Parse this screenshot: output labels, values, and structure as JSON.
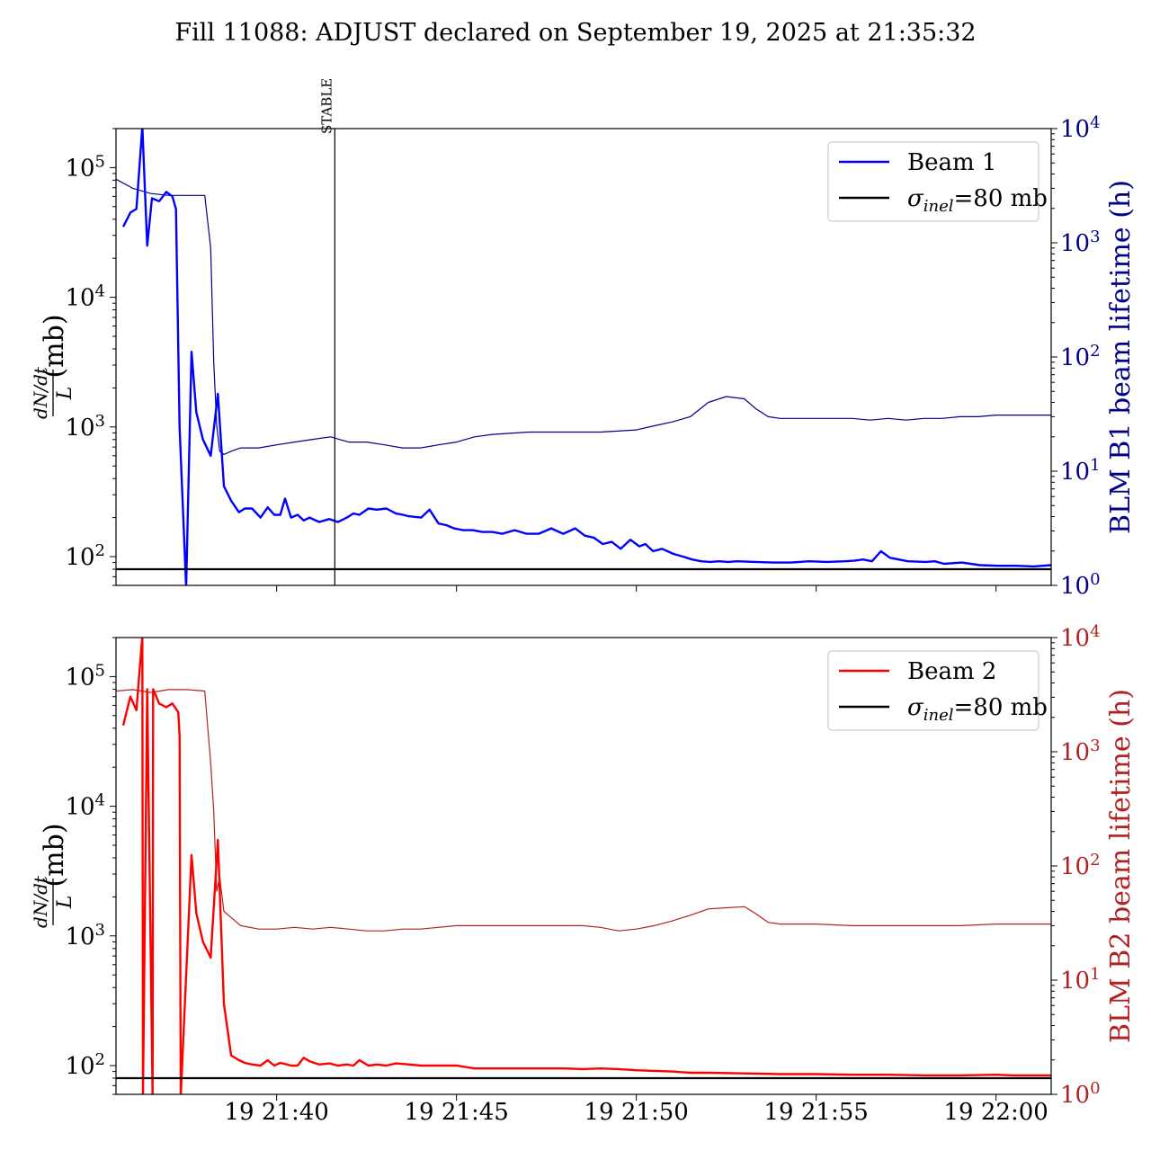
{
  "title": "Fill 11088: ADJUST declared on September 19, 2025 at 21:35:32",
  "annotation": "STABLE",
  "x_ticks": [
    "19 21:40",
    "19 21:45",
    "19 21:50",
    "19 21:55",
    "19 22:00"
  ],
  "chart_data": [
    {
      "type": "line",
      "panel": "top",
      "xlabel": "",
      "ylabel": "dN/dt / L (mb)",
      "y2label": "BLM B1 beam lifetime (h)",
      "xlim": [
        "21:35:32",
        "22:01:32"
      ],
      "ylim": [
        60,
        200000
      ],
      "y2lim": [
        1,
        10000
      ],
      "yscale": "log",
      "y2scale": "log",
      "grid": false,
      "legend": "top-right",
      "left_ticks": [
        "10^2",
        "10^3",
        "10^4",
        "10^5"
      ],
      "right_ticks": [
        "10^0",
        "10^1",
        "10^2",
        "10^3",
        "10^4"
      ],
      "vline": {
        "x": "21:41:37",
        "label": "STABLE"
      },
      "hline": {
        "y": 80,
        "label": "σinel=80 mb"
      },
      "series": [
        {
          "name": "Beam 1",
          "axis": "left",
          "color": "#0000ff",
          "x": [
            "21:35:44",
            "21:35:56",
            "21:36:06",
            "21:36:16",
            "21:36:24",
            "21:36:32",
            "21:36:44",
            "21:36:56",
            "21:37:06",
            "21:37:12",
            "21:37:18",
            "21:37:29",
            "21:37:38",
            "21:37:46",
            "21:37:57",
            "21:38:10",
            "21:38:22",
            "21:38:32",
            "21:38:44",
            "21:38:57",
            "21:39:07",
            "21:39:19",
            "21:39:33",
            "21:39:45",
            "21:39:56",
            "21:40:06",
            "21:40:14",
            "21:40:24",
            "21:40:35",
            "21:40:45",
            "21:40:55",
            "21:41:11",
            "21:41:28",
            "21:41:42",
            "21:41:57",
            "21:42:08",
            "21:42:18",
            "21:42:33",
            "21:42:47",
            "21:43:03",
            "21:43:19",
            "21:43:31",
            "21:43:40",
            "21:44:01",
            "21:44:15",
            "21:44:30",
            "21:44:43",
            "21:44:56",
            "21:45:11",
            "21:45:27",
            "21:45:43",
            "21:46:00",
            "21:46:16",
            "21:46:37",
            "21:46:57",
            "21:47:17",
            "21:47:38",
            "21:47:58",
            "21:48:18",
            "21:48:34",
            "21:48:49",
            "21:49:04",
            "21:49:19",
            "21:49:34",
            "21:49:50",
            "21:50:05",
            "21:50:15",
            "21:50:28",
            "21:50:43",
            "21:51:02",
            "21:51:18",
            "21:51:33",
            "21:51:48",
            "21:52:03",
            "21:52:18",
            "21:52:33",
            "21:52:48",
            "21:53:18",
            "21:53:48",
            "21:54:18",
            "21:54:48",
            "21:55:18",
            "21:55:48",
            "21:56:03",
            "21:56:18",
            "21:56:33",
            "21:56:48",
            "21:57:03",
            "21:57:33",
            "21:58:03",
            "21:58:18",
            "21:58:33",
            "21:59:03",
            "21:59:33",
            "22:00:03",
            "22:00:33",
            "22:01:03",
            "22:01:32"
          ],
          "values": [
            35000,
            45000,
            48000,
            210000,
            25000,
            58000,
            55000,
            65000,
            60000,
            48000,
            1000,
            20,
            3800,
            1300,
            800,
            600,
            1800,
            350,
            270,
            220,
            235,
            235,
            200,
            240,
            210,
            210,
            280,
            200,
            210,
            190,
            200,
            185,
            195,
            185,
            200,
            215,
            210,
            235,
            230,
            235,
            215,
            210,
            205,
            200,
            230,
            180,
            175,
            165,
            160,
            160,
            155,
            155,
            150,
            160,
            150,
            150,
            165,
            150,
            165,
            145,
            140,
            125,
            130,
            115,
            135,
            120,
            125,
            110,
            115,
            105,
            100,
            95,
            92,
            91,
            92,
            91,
            92,
            91,
            90,
            90,
            92,
            91,
            92,
            93,
            95,
            92,
            110,
            98,
            92,
            91,
            92,
            88,
            90,
            86,
            85,
            85,
            84,
            86
          ]
        },
        {
          "name": "BLM B1 beam lifetime",
          "axis": "right",
          "color": "#00008b",
          "x": [
            "21:35:32",
            "21:36:00",
            "21:36:30",
            "21:37:00",
            "21:37:30",
            "21:38:00",
            "21:38:10",
            "21:38:15",
            "21:38:20",
            "21:38:25",
            "21:38:32",
            "21:38:45",
            "21:39:00",
            "21:39:30",
            "21:40:00",
            "21:40:30",
            "21:41:00",
            "21:41:30",
            "21:42:00",
            "21:42:30",
            "21:43:00",
            "21:43:30",
            "21:44:00",
            "21:44:30",
            "21:45:00",
            "21:45:30",
            "21:46:00",
            "21:47:00",
            "21:48:00",
            "21:49:00",
            "21:50:00",
            "21:50:30",
            "21:51:00",
            "21:51:30",
            "21:52:00",
            "21:52:30",
            "21:53:00",
            "21:53:20",
            "21:53:40",
            "21:54:00",
            "21:54:30",
            "21:55:00",
            "21:55:30",
            "21:56:00",
            "21:56:30",
            "21:57:00",
            "21:57:30",
            "21:58:00",
            "21:58:30",
            "21:59:00",
            "21:59:30",
            "22:00:00",
            "22:00:30",
            "22:01:00",
            "22:01:32"
          ],
          "values": [
            3600,
            3000,
            2700,
            2600,
            2600,
            2600,
            900,
            90,
            25,
            15,
            14,
            15,
            16,
            16,
            17,
            18,
            19,
            20,
            18,
            18,
            17,
            16,
            16,
            17,
            18,
            20,
            21,
            22,
            22,
            22,
            23,
            25,
            27,
            30,
            40,
            45,
            43,
            35,
            30,
            29,
            29,
            29,
            29,
            29,
            28,
            29,
            28,
            29,
            29,
            30,
            30,
            31,
            31,
            31,
            31
          ]
        }
      ]
    },
    {
      "type": "line",
      "panel": "bottom",
      "xlabel": "",
      "ylabel": "dN/dt / L (mb)",
      "y2label": "BLM B2 beam lifetime (h)",
      "xlim": [
        "21:35:32",
        "22:01:32"
      ],
      "ylim": [
        60,
        200000
      ],
      "y2lim": [
        1,
        10000
      ],
      "yscale": "log",
      "y2scale": "log",
      "grid": false,
      "legend": "top-right",
      "left_ticks": [
        "10^2",
        "10^3",
        "10^4",
        "10^5"
      ],
      "right_ticks": [
        "10^0",
        "10^1",
        "10^2",
        "10^3",
        "10^4"
      ],
      "hline": {
        "y": 80,
        "label": "σinel=80 mb"
      },
      "series": [
        {
          "name": "Beam 2",
          "axis": "left",
          "color": "#ff0000",
          "x": [
            "21:35:44",
            "21:35:56",
            "21:36:06",
            "21:36:16",
            "21:36:17",
            "21:36:24",
            "21:36:33",
            "21:36:34",
            "21:36:44",
            "21:36:56",
            "21:37:06",
            "21:37:16",
            "21:37:18",
            "21:37:20",
            "21:37:38",
            "21:37:46",
            "21:37:57",
            "21:38:10",
            "21:38:22",
            "21:38:32",
            "21:38:44",
            "21:38:57",
            "21:39:07",
            "21:39:19",
            "21:39:33",
            "21:39:45",
            "21:39:56",
            "21:40:06",
            "21:40:14",
            "21:40:24",
            "21:40:35",
            "21:40:45",
            "21:40:55",
            "21:41:11",
            "21:41:28",
            "21:41:42",
            "21:41:57",
            "21:42:08",
            "21:42:18",
            "21:42:33",
            "21:42:47",
            "21:43:03",
            "21:43:19",
            "21:43:31",
            "21:44:01",
            "21:44:30",
            "21:45:00",
            "21:45:30",
            "21:46:00",
            "21:47:00",
            "21:48:00",
            "21:48:30",
            "21:49:00",
            "21:49:30",
            "21:50:00",
            "21:50:30",
            "21:51:00",
            "21:51:30",
            "21:52:00",
            "21:53:00",
            "21:54:00",
            "21:55:00",
            "21:56:00",
            "21:57:00",
            "21:58:00",
            "21:59:00",
            "22:00:00",
            "22:00:30",
            "22:01:00",
            "22:01:32"
          ],
          "values": [
            42000,
            70000,
            55000,
            210000,
            20,
            80000,
            20,
            80000,
            62000,
            58000,
            62000,
            53000,
            35000,
            20,
            4200,
            1500,
            900,
            680,
            5500,
            300,
            120,
            110,
            105,
            102,
            100,
            110,
            100,
            105,
            103,
            100,
            100,
            115,
            108,
            102,
            104,
            100,
            102,
            100,
            110,
            100,
            102,
            100,
            104,
            103,
            100,
            100,
            100,
            95,
            95,
            95,
            95,
            94,
            95,
            94,
            92,
            91,
            90,
            88,
            88,
            87,
            86,
            86,
            85,
            85,
            84,
            84,
            85,
            84,
            84,
            84
          ]
        },
        {
          "name": "BLM B2 beam lifetime",
          "axis": "right",
          "color": "#b22222",
          "x": [
            "21:35:32",
            "21:36:00",
            "21:36:30",
            "21:37:00",
            "21:37:30",
            "21:38:00",
            "21:38:10",
            "21:38:15",
            "21:38:20",
            "21:38:25",
            "21:38:32",
            "21:38:45",
            "21:39:00",
            "21:39:30",
            "21:40:00",
            "21:40:30",
            "21:41:00",
            "21:41:30",
            "21:42:00",
            "21:42:30",
            "21:43:00",
            "21:43:30",
            "21:44:00",
            "21:45:00",
            "21:46:00",
            "21:47:00",
            "21:48:00",
            "21:48:30",
            "21:49:00",
            "21:49:30",
            "21:50:00",
            "21:50:30",
            "21:51:00",
            "21:51:30",
            "21:52:00",
            "21:52:30",
            "21:53:00",
            "21:53:20",
            "21:53:40",
            "21:54:00",
            "21:55:00",
            "21:56:00",
            "21:57:00",
            "21:58:00",
            "21:59:00",
            "22:00:00",
            "22:01:32"
          ],
          "values": [
            3400,
            3500,
            3300,
            3500,
            3500,
            3400,
            800,
            300,
            60,
            80,
            40,
            35,
            30,
            28,
            28,
            29,
            28,
            29,
            28,
            27,
            27,
            28,
            28,
            30,
            30,
            30,
            30,
            30,
            29,
            27,
            28,
            30,
            33,
            37,
            42,
            43,
            44,
            38,
            32,
            31,
            31,
            30,
            30,
            30,
            30,
            31,
            31
          ]
        }
      ]
    }
  ]
}
